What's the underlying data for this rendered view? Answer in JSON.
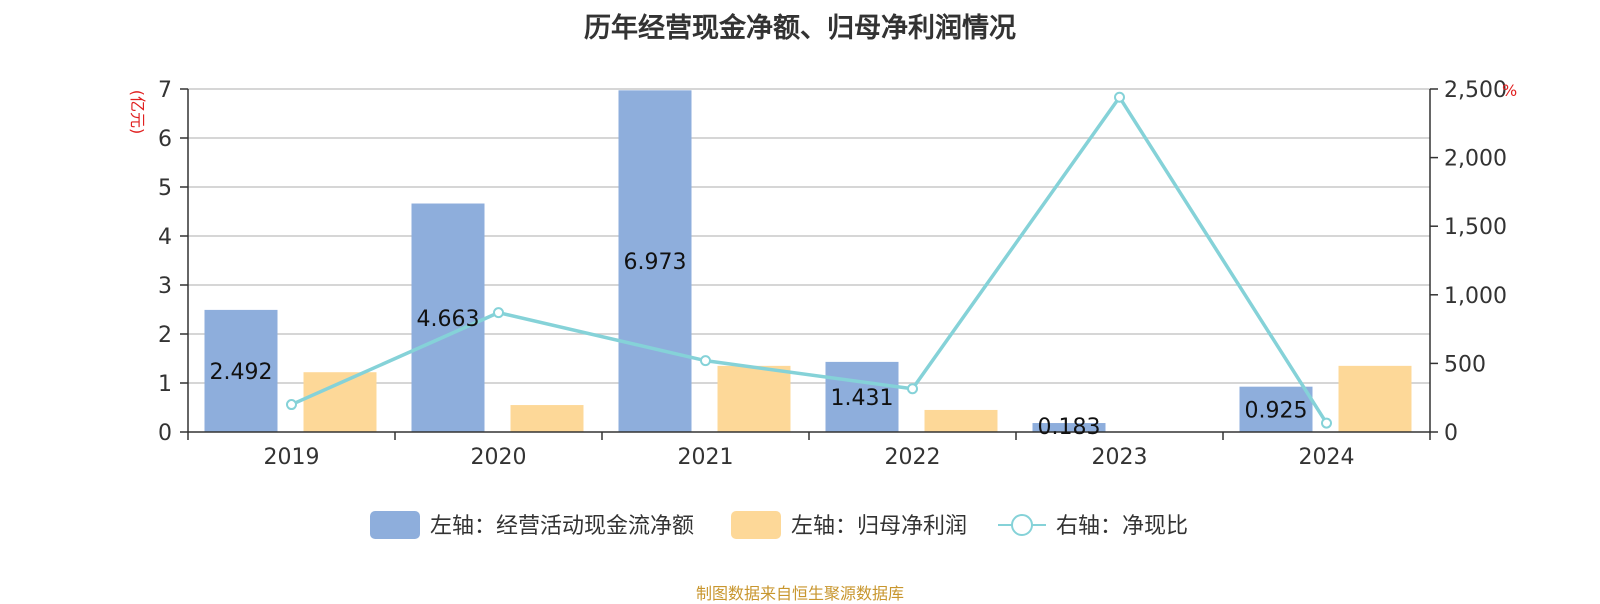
{
  "colors": {
    "bar_cashflow": "#8eaedc",
    "bar_profit": "#fdd898",
    "line_ratio": "#85d2d8",
    "grid": "#c8c8c8",
    "axis": "#333333",
    "unit": "#e02020",
    "source": "#c8962e"
  },
  "chart_data": {
    "type": "bar",
    "title": "历年经营现金净额、归母净利润情况",
    "categories": [
      "2019",
      "2020",
      "2021",
      "2022",
      "2023",
      "2024"
    ],
    "left_axis": {
      "unit_label": "(亿元)",
      "ylim": [
        0,
        7
      ],
      "ticks": [
        "0",
        "1",
        "2",
        "3",
        "4",
        "5",
        "6",
        "7"
      ]
    },
    "right_axis": {
      "unit_label": "%",
      "ylim": [
        0,
        2500
      ],
      "ticks": [
        "0",
        "500",
        "1,000",
        "1,500",
        "2,000",
        "2,500"
      ]
    },
    "series": [
      {
        "name": "左轴：经营活动现金流净额",
        "type": "bar",
        "axis": "left",
        "values": [
          2.492,
          4.663,
          6.973,
          1.431,
          0.183,
          0.925
        ],
        "labels": [
          "2.492",
          "4.663",
          "6.973",
          "1.431",
          "0.183",
          "0.925"
        ]
      },
      {
        "name": "左轴：归母净利润",
        "type": "bar",
        "axis": "left",
        "values": [
          1.22,
          0.55,
          1.35,
          0.45,
          0.0,
          1.35
        ]
      },
      {
        "name": "右轴：净现比",
        "type": "line",
        "axis": "right",
        "values": [
          200,
          870,
          520,
          315,
          2440,
          65
        ]
      }
    ],
    "grid": true,
    "legend_position": "bottom"
  },
  "source_note": "制图数据来自恒生聚源数据库"
}
